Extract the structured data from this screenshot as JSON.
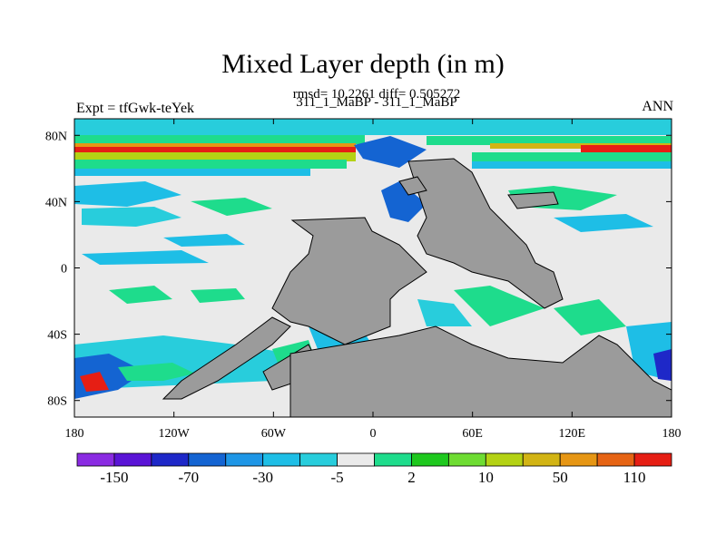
{
  "chart_data": {
    "type": "heatmap",
    "title": "Mixed Layer depth (in m)",
    "subtitle_stats": "rmsd= 10.2261 diff= 0.505272",
    "subtitle_runs": "311_1_MaBP - 311_1_MaBP",
    "left_label": "Expt = tfGwk-teYek",
    "right_label": "ANN",
    "x_axis": {
      "range": [
        -180,
        180
      ],
      "ticks": [
        -180,
        -120,
        -60,
        0,
        60,
        120,
        180
      ],
      "tick_labels": [
        "180",
        "120W",
        "60W",
        "0",
        "60E",
        "120E",
        "180"
      ]
    },
    "y_axis": {
      "range": [
        -90,
        90
      ],
      "ticks": [
        80,
        40,
        0,
        -40,
        -80
      ],
      "tick_labels": [
        "80N",
        "40N",
        "0",
        "40S",
        "80S"
      ]
    },
    "colorbar": {
      "labels": [
        "-150",
        "-70",
        "-30",
        "-5",
        "2",
        "10",
        "50",
        "110"
      ],
      "colors": [
        "#8a2be2",
        "#5a14d6",
        "#1e28c8",
        "#1464d2",
        "#1e96e6",
        "#1ebee6",
        "#28cddc",
        "#eaeaea",
        "#1edc8c",
        "#1ec81e",
        "#6edc32",
        "#b4d214",
        "#d2b414",
        "#e69614",
        "#e66414",
        "#e61e14"
      ]
    },
    "land_color": "#9b9b9b"
  }
}
